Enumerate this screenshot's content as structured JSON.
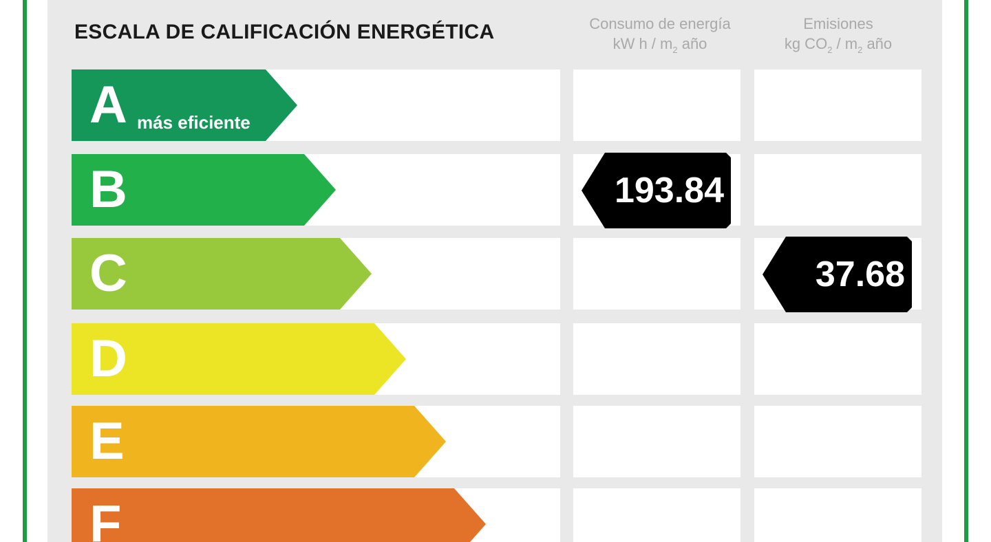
{
  "header": {
    "title": "ESCALA DE CALIFICACIÓN ENERGÉTICA",
    "energy_col": {
      "line1": "Consumo de energía",
      "line2_a": "kW h / m",
      "line2_sub": "2",
      "line2_b": " año"
    },
    "emissions_col": {
      "line1": "Emisiones",
      "line2_a": "kg CO",
      "line2_sub": "2",
      "line2_b": " / m",
      "line2_sub2": "2",
      "line2_c": " año"
    }
  },
  "ratings": [
    {
      "letter": "A",
      "sublabel": "más eficiente",
      "color": "#16975a"
    },
    {
      "letter": "B",
      "sublabel": "",
      "color": "#22b04b"
    },
    {
      "letter": "C",
      "sublabel": "",
      "color": "#98c93c"
    },
    {
      "letter": "D",
      "sublabel": "",
      "color": "#ebe525"
    },
    {
      "letter": "E",
      "sublabel": "",
      "color": "#f0b41e"
    },
    {
      "letter": "F",
      "sublabel": "",
      "color": "#e2722a"
    }
  ],
  "energy_value": {
    "value": "193.84",
    "rating": "B"
  },
  "emissions_value": {
    "value": "37.68",
    "rating": "C"
  },
  "badge_color": "#000000"
}
